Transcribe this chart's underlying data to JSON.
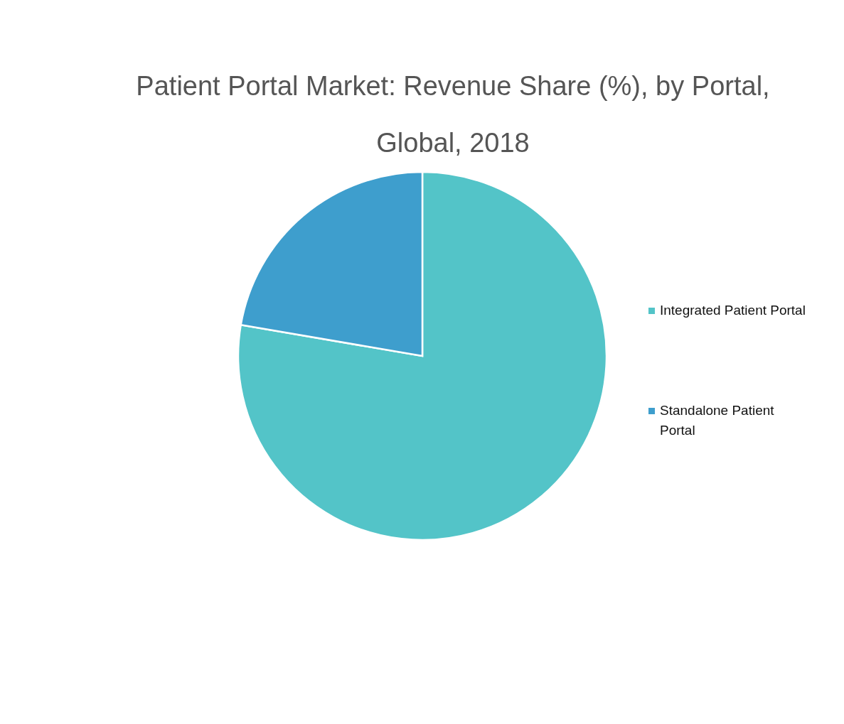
{
  "chart_data": {
    "type": "pie",
    "title": "Patient Portal Market: Revenue Share (%), by Portal, Global, 2018",
    "categories": [
      "Integrated Patient Portal",
      "Standalone Patient Portal"
    ],
    "values": [
      77.7,
      22.3
    ],
    "colors": [
      "#53c4c8",
      "#3e9ecd"
    ],
    "legend": "right"
  }
}
